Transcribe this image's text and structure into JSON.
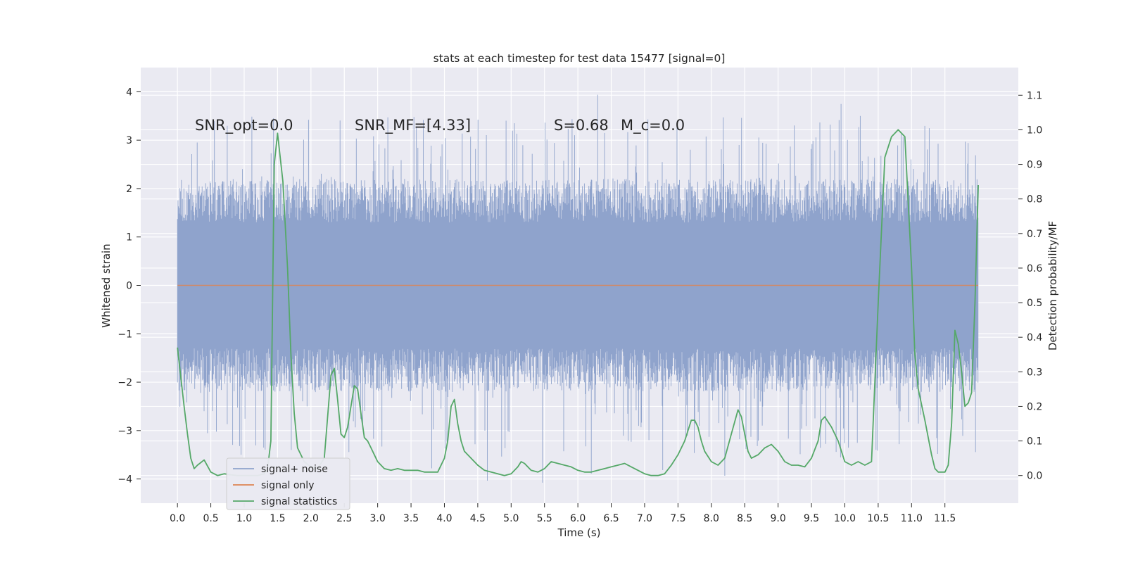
{
  "chart_data": {
    "type": "line",
    "title": "stats at each timestep for test data 15477 [signal=0]",
    "xlabel": "Time (s)",
    "ylabel": "Whitened strain",
    "y2label": "Detection probability/MF",
    "xlim": [
      -0.55,
      12.6
    ],
    "ylim": [
      -4.5,
      4.5
    ],
    "y2lim": [
      -0.08,
      1.18
    ],
    "x_ticks": [
      "0.0",
      "0.5",
      "1.0",
      "1.5",
      "2.0",
      "2.5",
      "3.0",
      "3.5",
      "4.0",
      "4.5",
      "5.0",
      "5.5",
      "6.0",
      "6.5",
      "7.0",
      "7.5",
      "8.0",
      "8.5",
      "9.0",
      "9.5",
      "10.0",
      "10.5",
      "11.0",
      "11.5"
    ],
    "y_ticks": [
      "4",
      "3",
      "2",
      "1",
      "0",
      "−1",
      "−2",
      "−3",
      "−4"
    ],
    "y2_ticks": [
      "1.1",
      "1.0",
      "0.9",
      "0.8",
      "0.7",
      "0.6",
      "0.5",
      "0.4",
      "0.3",
      "0.2",
      "0.1",
      "0.0"
    ],
    "grid": true,
    "legend_placement": "lower-left",
    "annotations": {
      "snr_opt": "SNR_opt=0.0",
      "snr_mf": "SNR_MF=[4.33]",
      "s_val": "S=0.68",
      "mc_val": "M_c=0.0"
    },
    "series": [
      {
        "name": "signal+ noise",
        "color": "#8fa3cc",
        "style": "dense noise, roughly between -2.5 and 2.5 with spikes up to about +/-4.1",
        "x_range": [
          0.0,
          12.0
        ],
        "band_core": [
          -1.3,
          1.3
        ],
        "band_main": [
          -2.2,
          2.2
        ]
      },
      {
        "name": "signal only",
        "color": "#dd8452",
        "x": [
          0.0,
          12.0
        ],
        "y": [
          0.0,
          0.0
        ]
      },
      {
        "name": "signal statistics",
        "color": "#55a868",
        "axis": "right",
        "x": [
          0.0,
          0.1,
          0.15,
          0.2,
          0.25,
          0.3,
          0.4,
          0.5,
          0.6,
          0.7,
          0.8,
          0.9,
          1.0,
          1.1,
          1.2,
          1.3,
          1.35,
          1.4,
          1.45,
          1.5,
          1.58,
          1.65,
          1.7,
          1.75,
          1.8,
          1.9,
          2.0,
          2.1,
          2.2,
          2.3,
          2.35,
          2.4,
          2.45,
          2.5,
          2.55,
          2.6,
          2.65,
          2.7,
          2.75,
          2.8,
          2.85,
          2.9,
          2.95,
          3.0,
          3.1,
          3.2,
          3.3,
          3.4,
          3.5,
          3.6,
          3.7,
          3.8,
          3.9,
          4.0,
          4.05,
          4.1,
          4.15,
          4.2,
          4.25,
          4.3,
          4.35,
          4.4,
          4.5,
          4.6,
          4.7,
          4.8,
          4.9,
          5.0,
          5.1,
          5.15,
          5.2,
          5.3,
          5.4,
          5.5,
          5.6,
          5.7,
          5.8,
          5.9,
          6.0,
          6.1,
          6.2,
          6.3,
          6.4,
          6.5,
          6.6,
          6.7,
          6.8,
          6.9,
          7.0,
          7.1,
          7.2,
          7.3,
          7.4,
          7.5,
          7.6,
          7.7,
          7.75,
          7.8,
          7.85,
          7.9,
          8.0,
          8.1,
          8.2,
          8.3,
          8.4,
          8.45,
          8.5,
          8.55,
          8.6,
          8.7,
          8.8,
          8.9,
          9.0,
          9.1,
          9.2,
          9.3,
          9.4,
          9.5,
          9.6,
          9.65,
          9.7,
          9.8,
          9.9,
          10.0,
          10.1,
          10.2,
          10.3,
          10.4,
          10.5,
          10.6,
          10.7,
          10.8,
          10.9,
          11.0,
          11.05,
          11.1,
          11.2,
          11.3,
          11.35,
          11.4,
          11.5,
          11.55,
          11.6,
          11.65,
          11.7,
          11.75,
          11.8,
          11.85,
          11.9,
          11.95,
          12.0
        ],
        "y": [
          0.37,
          0.2,
          0.12,
          0.05,
          0.02,
          0.03,
          0.045,
          0.01,
          0.0,
          0.005,
          0.002,
          0.0,
          0.0,
          0.0,
          0.0,
          0.005,
          0.02,
          0.1,
          0.9,
          0.99,
          0.85,
          0.6,
          0.35,
          0.18,
          0.08,
          0.04,
          0.025,
          0.02,
          0.05,
          0.29,
          0.31,
          0.22,
          0.12,
          0.11,
          0.14,
          0.2,
          0.26,
          0.25,
          0.18,
          0.11,
          0.1,
          0.08,
          0.06,
          0.04,
          0.02,
          0.015,
          0.02,
          0.015,
          0.015,
          0.015,
          0.01,
          0.01,
          0.01,
          0.05,
          0.1,
          0.2,
          0.22,
          0.15,
          0.1,
          0.07,
          0.06,
          0.05,
          0.03,
          0.015,
          0.01,
          0.005,
          0.0,
          0.005,
          0.025,
          0.04,
          0.035,
          0.015,
          0.01,
          0.02,
          0.04,
          0.035,
          0.03,
          0.025,
          0.015,
          0.01,
          0.01,
          0.015,
          0.02,
          0.025,
          0.03,
          0.035,
          0.025,
          0.015,
          0.005,
          0.0,
          0.0,
          0.005,
          0.03,
          0.06,
          0.1,
          0.16,
          0.16,
          0.14,
          0.1,
          0.07,
          0.04,
          0.03,
          0.05,
          0.12,
          0.19,
          0.17,
          0.12,
          0.07,
          0.05,
          0.06,
          0.08,
          0.09,
          0.07,
          0.04,
          0.03,
          0.03,
          0.025,
          0.05,
          0.1,
          0.16,
          0.17,
          0.14,
          0.1,
          0.04,
          0.03,
          0.04,
          0.03,
          0.04,
          0.5,
          0.92,
          0.98,
          1.0,
          0.98,
          0.6,
          0.35,
          0.25,
          0.16,
          0.06,
          0.02,
          0.01,
          0.01,
          0.03,
          0.15,
          0.42,
          0.38,
          0.3,
          0.2,
          0.21,
          0.24,
          0.5,
          0.84
        ]
      }
    ]
  }
}
